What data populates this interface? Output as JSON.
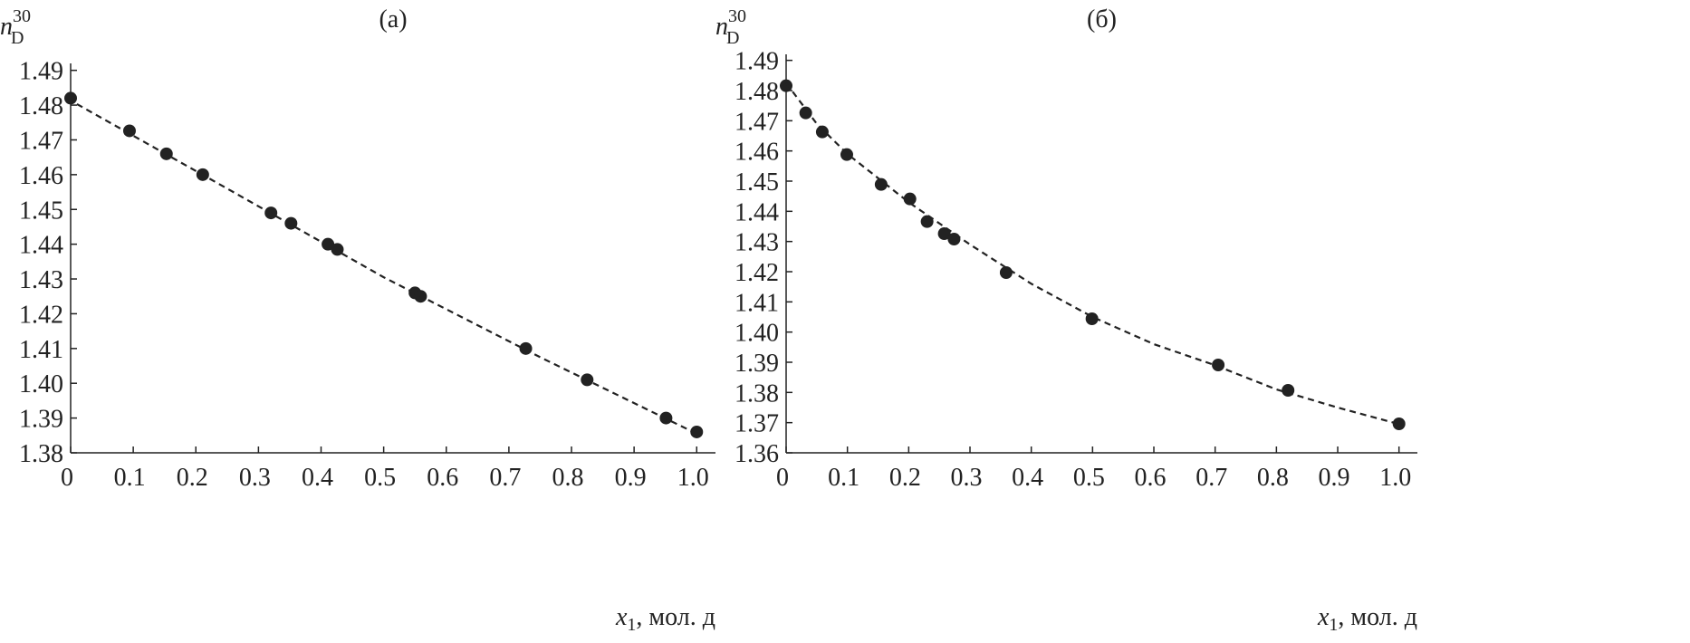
{
  "chart_data": [
    {
      "type": "scatter",
      "title": "(а)",
      "y_label": {
        "text": "n",
        "sub": "D",
        "sup": "30"
      },
      "x_label": {
        "text": "x",
        "sub": "1",
        "rest": ", мол. д"
      },
      "xlim": [
        0,
        1.03
      ],
      "ylim": [
        1.38,
        1.492
      ],
      "xticks": [
        0,
        0.1,
        0.2,
        0.3,
        0.4,
        0.5,
        0.6,
        0.7,
        0.8,
        0.9,
        {
          "value": 1,
          "label": "1.0"
        }
      ],
      "yticks": [
        1.38,
        1.39,
        {
          "value": 1.4,
          "label": "1.40"
        },
        1.41,
        1.42,
        1.43,
        1.44,
        1.45,
        1.46,
        1.47,
        1.48,
        1.49
      ],
      "series": [
        {
          "style": "points",
          "color": "#222222",
          "x": [
            0,
            0.094,
            0.153,
            0.211,
            0.32,
            0.352,
            0.411,
            0.426,
            0.55,
            0.559,
            0.727,
            0.825,
            0.951,
            1.0
          ],
          "values": [
            1.482,
            1.4726,
            1.466,
            1.46,
            1.449,
            1.446,
            1.44,
            1.4385,
            1.426,
            1.425,
            1.41,
            1.401,
            1.39,
            1.386
          ]
        },
        {
          "style": "dashed",
          "color": "#222222",
          "x": [
            0.01,
            0.25,
            0.5,
            0.75,
            1.0
          ],
          "values": [
            1.4803,
            1.456,
            1.4305,
            1.4075,
            1.3855
          ]
        }
      ]
    },
    {
      "type": "scatter",
      "title": "(б)",
      "y_label": {
        "text": "n",
        "sub": "D",
        "sup": "30"
      },
      "x_label": {
        "text": "x",
        "sub": "1",
        "rest": ", мол. д"
      },
      "xlim": [
        0,
        1.03
      ],
      "ylim": [
        1.36,
        1.492
      ],
      "xticks": [
        0,
        0.1,
        0.2,
        0.3,
        0.4,
        0.5,
        0.6,
        0.7,
        0.8,
        0.9,
        {
          "value": 1,
          "label": "1.0"
        }
      ],
      "yticks": [
        1.36,
        1.37,
        1.38,
        1.39,
        {
          "value": 1.4,
          "label": "1.40"
        },
        1.41,
        1.42,
        1.43,
        1.44,
        1.45,
        1.46,
        1.47,
        1.48,
        1.49
      ],
      "series": [
        {
          "style": "points",
          "color": "#222222",
          "x": [
            0,
            0.032,
            0.059,
            0.099,
            0.155,
            0.202,
            0.23,
            0.258,
            0.274,
            0.359,
            0.499,
            0.705,
            0.819,
            1.0
          ],
          "values": [
            1.4816,
            1.4726,
            1.4663,
            1.4588,
            1.4489,
            1.4441,
            1.4366,
            1.4326,
            1.4308,
            1.4197,
            1.4044,
            1.3891,
            1.3807,
            1.3696
          ]
        },
        {
          "style": "dashed",
          "color": "#222222",
          "x": [
            0,
            0.05,
            0.1,
            0.2,
            0.3,
            0.4,
            0.5,
            0.6,
            0.7,
            0.8,
            0.9,
            1.0
          ],
          "values": [
            1.4825,
            1.469,
            1.459,
            1.443,
            1.429,
            1.416,
            1.405,
            1.396,
            1.389,
            1.381,
            1.375,
            1.3695
          ]
        }
      ]
    }
  ]
}
